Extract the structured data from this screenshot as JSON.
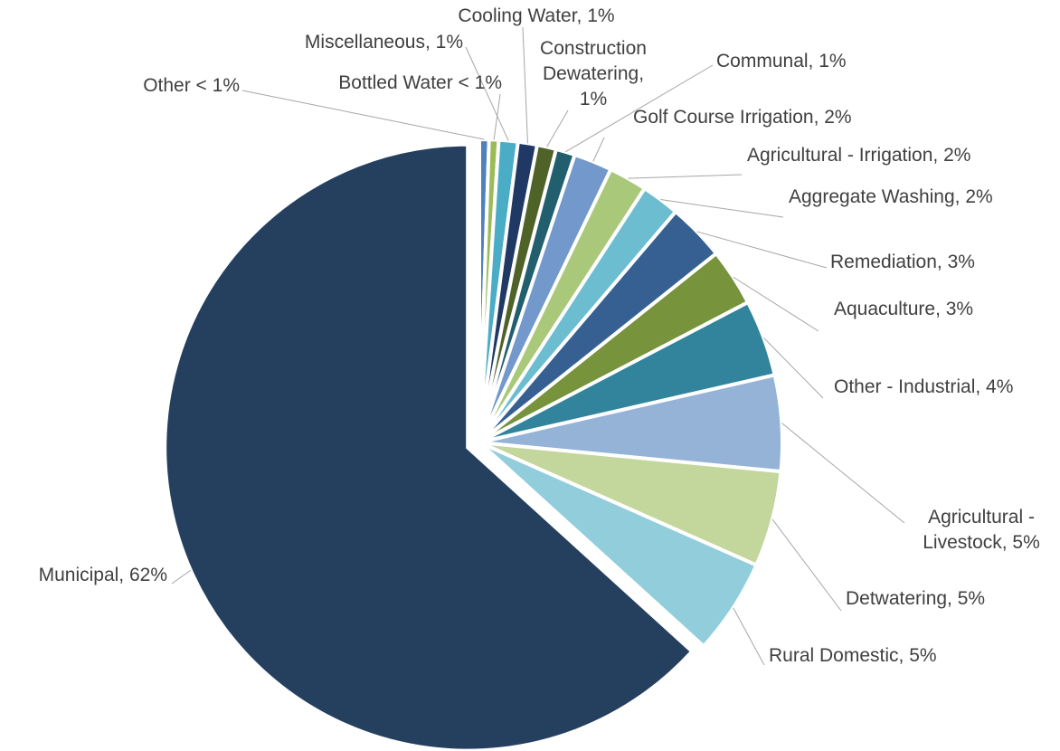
{
  "chart_data": {
    "type": "pie",
    "categories": [
      "Other < 1%",
      "Bottled Water < 1%",
      "Miscellaneous, 1%",
      "Cooling Water, 1%",
      "Construction Dewatering, 1%",
      "Communal, 1%",
      "Golf Course Irrigation, 2%",
      "Agricultural - Irrigation, 2%",
      "Aggregate Washing, 2%",
      "Remediation, 3%",
      "Aquaculture, 3%",
      "Other - Industrial, 4%",
      "Agricultural - Livestock, 5%",
      "Detwatering, 5%",
      "Rural Domestic, 5%",
      "Municipal, 62%"
    ],
    "values": [
      0.5,
      0.5,
      1,
      1,
      1,
      1,
      2,
      2,
      2,
      3,
      3,
      4,
      5,
      5,
      5,
      62
    ],
    "colors": [
      "#4f81bd",
      "#9bbb59",
      "#4bacc6",
      "#1f3864",
      "#4f6228",
      "#215f6e",
      "#7298cc",
      "#a9c879",
      "#6dbdd1",
      "#366092",
      "#77933c",
      "#31849b",
      "#95b3d7",
      "#c3d69b",
      "#92cddc",
      "#253f5f"
    ]
  }
}
